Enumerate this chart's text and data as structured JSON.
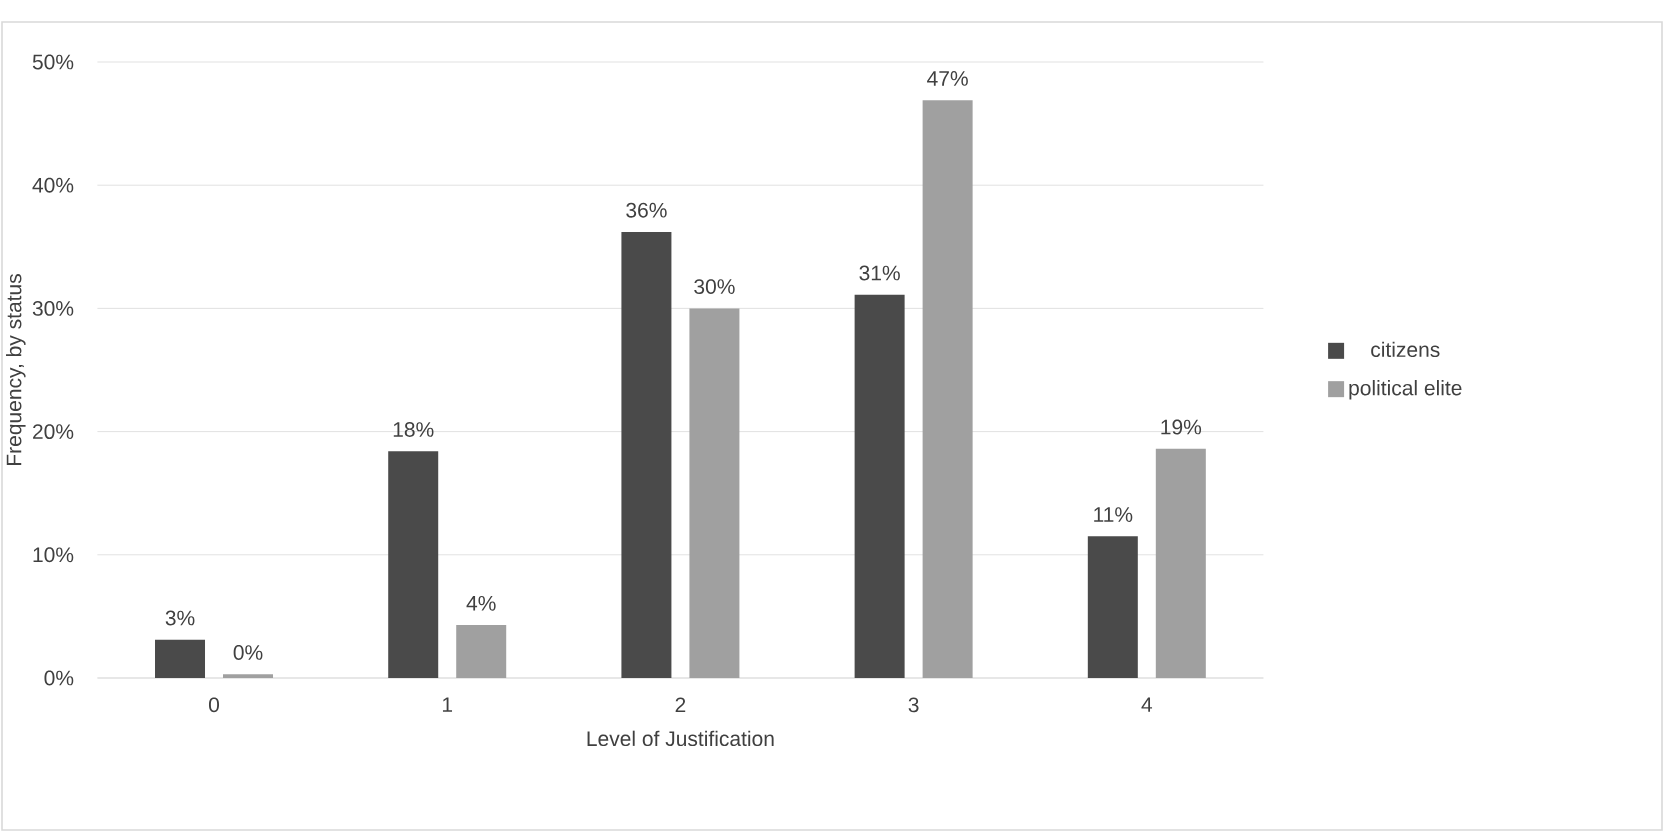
{
  "chart_data": {
    "type": "bar",
    "xlabel": "Level of Justification",
    "ylabel": "Frequency, by status",
    "categories": [
      "0",
      "1",
      "2",
      "3",
      "4"
    ],
    "series": [
      {
        "name": "citizens",
        "color": "#4a4a4a",
        "values": [
          3.1,
          18.4,
          36.2,
          31.1,
          11.5
        ],
        "value_labels": [
          "3%",
          "18%",
          "36%",
          "31%",
          "11%"
        ]
      },
      {
        "name": "political elite",
        "color": "#a0a0a0",
        "values": [
          0.3,
          4.3,
          30.0,
          46.9,
          18.6
        ],
        "value_labels": [
          "0%",
          "4%",
          "30%",
          "47%",
          "19%"
        ]
      }
    ],
    "ylim": [
      0,
      50
    ],
    "yticks": [
      {
        "value": 0,
        "label": "0%"
      },
      {
        "value": 10,
        "label": "10%"
      },
      {
        "value": 20,
        "label": "20%"
      },
      {
        "value": 30,
        "label": "30%"
      },
      {
        "value": 40,
        "label": "40%"
      },
      {
        "value": 50,
        "label": "50%"
      }
    ],
    "grid": "y",
    "legend": "right"
  }
}
